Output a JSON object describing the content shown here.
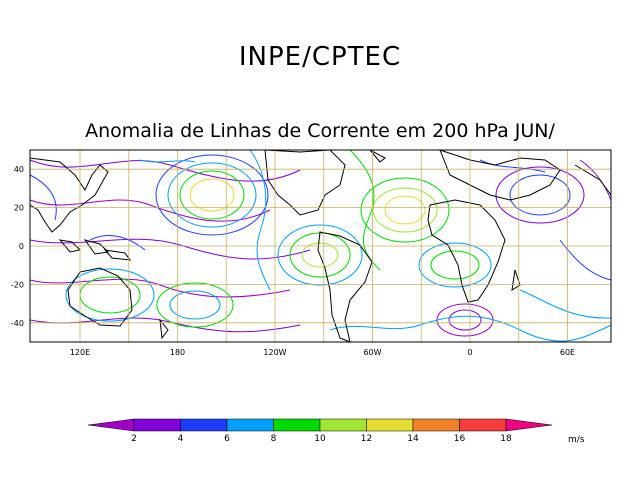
{
  "header": {
    "title": "INPE/CPTEC",
    "subtitle": "Anomalia de Linhas de Corrente em 200 hPa JUN/"
  },
  "map": {
    "lat_ticks": [
      "40",
      "20",
      "0",
      "-20",
      "-40"
    ],
    "lon_ticks": [
      "120E",
      "180",
      "120W",
      "60W",
      "0",
      "60E"
    ]
  },
  "colorbar": {
    "unit": "m/s",
    "tick_labels": [
      "2",
      "4",
      "6",
      "8",
      "10",
      "12",
      "14",
      "16",
      "18"
    ],
    "colors": [
      "#a000c8",
      "#8200dc",
      "#1e3cff",
      "#00a0ff",
      "#00dc00",
      "#a0e632",
      "#e6dc32",
      "#f08228",
      "#fa3c3c",
      "#f00082"
    ]
  }
}
